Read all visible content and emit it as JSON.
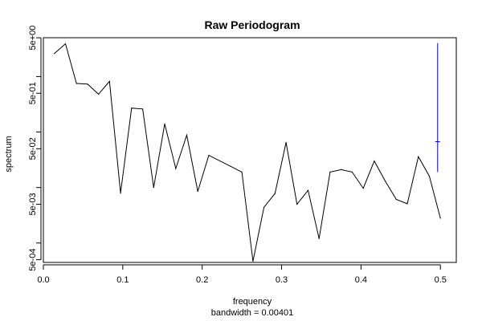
{
  "chart_data": {
    "type": "line",
    "title": "Raw Periodogram",
    "xlabel": "frequency",
    "sublabel": "bandwidth = 0.00401",
    "ylabel": "spectrum",
    "xlim": [
      0,
      0.52
    ],
    "ylim_log10": [
      -3.35,
      0.7
    ],
    "log_y": true,
    "grid": false,
    "x_ticks": [
      {
        "value": 0.0,
        "label": "0.0"
      },
      {
        "value": 0.1,
        "label": "0.1"
      },
      {
        "value": 0.2,
        "label": "0.2"
      },
      {
        "value": 0.3,
        "label": "0.3"
      },
      {
        "value": 0.4,
        "label": "0.4"
      },
      {
        "value": 0.5,
        "label": "0.5"
      }
    ],
    "y_ticks_major": [
      {
        "value": 0.0005,
        "label": "5e-04"
      },
      {
        "value": 0.005,
        "label": "5e-03"
      },
      {
        "value": 0.05,
        "label": "5e-02"
      },
      {
        "value": 0.5,
        "label": "5e-01"
      },
      {
        "value": 5,
        "label": "5e+00"
      }
    ],
    "y_ticks_minor": [
      0.001,
      0.01,
      0.1,
      1
    ],
    "series": [
      {
        "color": "#000000",
        "x": [
          0.0139,
          0.0278,
          0.0417,
          0.0556,
          0.0694,
          0.0833,
          0.0972,
          0.1111,
          0.125,
          0.1389,
          0.1528,
          0.1667,
          0.1806,
          0.1944,
          0.2083,
          0.2361,
          0.25,
          0.2639,
          0.2778,
          0.2917,
          0.3056,
          0.3194,
          0.3333,
          0.3472,
          0.3611,
          0.375,
          0.3889,
          0.4028,
          0.4167,
          0.4306,
          0.4444,
          0.4583,
          0.4722,
          0.4861,
          0.5
        ],
        "y": [
          2.6,
          3.9,
          0.75,
          0.73,
          0.48,
          0.82,
          0.0079,
          0.27,
          0.26,
          0.01,
          0.14,
          0.022,
          0.088,
          0.0085,
          0.038,
          0.024,
          0.019,
          0.00047,
          0.0044,
          0.0078,
          0.065,
          0.005,
          0.0089,
          0.0012,
          0.019,
          0.021,
          0.019,
          0.0097,
          0.03,
          0.013,
          0.0061,
          0.0051,
          0.036,
          0.016,
          0.0028
        ]
      }
    ],
    "ci_bar": {
      "color": "#0000ff",
      "x": 0.4965,
      "center": 0.067,
      "lower": 0.019,
      "upper": 4.0
    }
  }
}
